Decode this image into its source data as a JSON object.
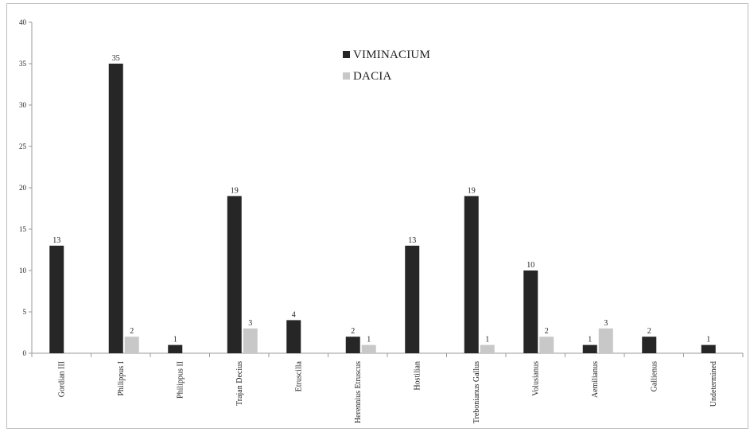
{
  "chart_data": {
    "type": "bar",
    "title": "",
    "xlabel": "",
    "ylabel": "",
    "ylim": [
      0,
      40
    ],
    "yticks": [
      0,
      5,
      10,
      15,
      20,
      25,
      30,
      35,
      40
    ],
    "grid": false,
    "legend_position": "top-center",
    "categories": [
      "Gordian III",
      "Philippus I",
      "Philippus II",
      "Trajan Decius",
      "Etruscilla",
      "Herennius Etruscus",
      "Hostilian",
      "Trebonianus Gallus",
      "Volusianus",
      "Aemilianus",
      "Gallienus",
      "Undetermined"
    ],
    "series": [
      {
        "name": "VIMINACIUM",
        "color": "#262626",
        "values": [
          13,
          35,
          1,
          19,
          4,
          2,
          13,
          19,
          10,
          1,
          2,
          1
        ]
      },
      {
        "name": "DACIA",
        "color": "#c8c8c8",
        "values": [
          null,
          2,
          null,
          3,
          null,
          1,
          null,
          1,
          2,
          3,
          null,
          null
        ]
      }
    ]
  }
}
